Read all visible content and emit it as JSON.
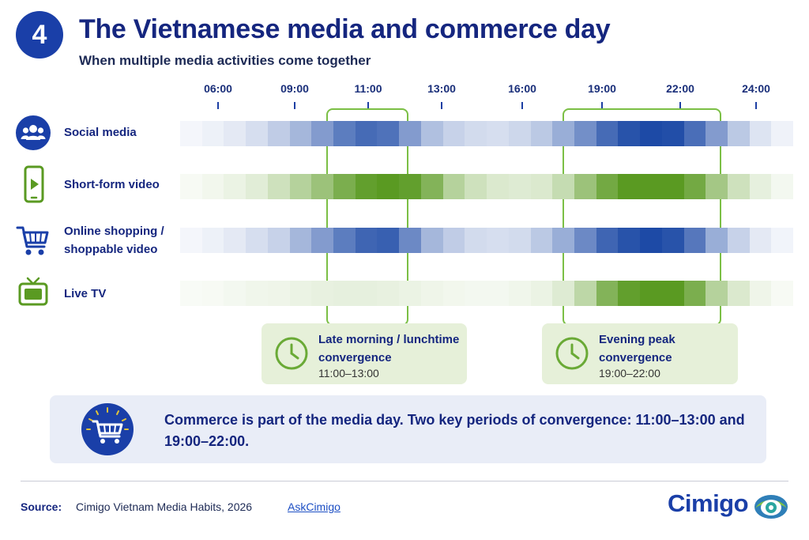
{
  "header": {
    "badge_number": "4",
    "title": "The Vietnamese media and commerce day",
    "subtitle": "When multiple media activities come together"
  },
  "chart_data": {
    "type": "heatmap",
    "x_ticks": [
      "06:00",
      "09:00",
      "11:00",
      "13:00",
      "16:00",
      "19:00",
      "22:00",
      "24:00"
    ],
    "rows": [
      {
        "label": "Social media",
        "icon": "people-icon",
        "color": "#1d4aa6",
        "intensity": [
          0.05,
          0.08,
          0.12,
          0.18,
          0.28,
          0.4,
          0.55,
          0.72,
          0.82,
          0.78,
          0.55,
          0.35,
          0.25,
          0.2,
          0.18,
          0.22,
          0.3,
          0.45,
          0.62,
          0.82,
          0.95,
          1.0,
          0.98,
          0.8,
          0.55,
          0.3,
          0.15,
          0.07
        ]
      },
      {
        "label": "Short-form video",
        "icon": "phone-play-icon",
        "color": "#5a9a22",
        "intensity": [
          0.05,
          0.08,
          0.12,
          0.18,
          0.3,
          0.45,
          0.6,
          0.8,
          0.95,
          1.0,
          0.95,
          0.75,
          0.45,
          0.3,
          0.22,
          0.2,
          0.22,
          0.35,
          0.6,
          0.85,
          1.0,
          1.0,
          1.0,
          0.85,
          0.55,
          0.3,
          0.15,
          0.07
        ]
      },
      {
        "label": "Online shopping / shoppable video",
        "icon": "shopping-cart-icon",
        "color": "#1d4aa6",
        "intensity": [
          0.05,
          0.08,
          0.12,
          0.18,
          0.25,
          0.4,
          0.55,
          0.72,
          0.85,
          0.88,
          0.65,
          0.4,
          0.28,
          0.2,
          0.18,
          0.2,
          0.3,
          0.45,
          0.65,
          0.85,
          0.95,
          1.0,
          0.95,
          0.75,
          0.45,
          0.25,
          0.12,
          0.06
        ]
      },
      {
        "label": "Live TV",
        "icon": "tv-icon",
        "color": "#5a9a22",
        "intensity": [
          0.04,
          0.05,
          0.07,
          0.09,
          0.1,
          0.12,
          0.14,
          0.15,
          0.15,
          0.14,
          0.12,
          0.1,
          0.08,
          0.07,
          0.07,
          0.09,
          0.12,
          0.2,
          0.4,
          0.75,
          0.95,
          1.0,
          1.0,
          0.8,
          0.45,
          0.22,
          0.1,
          0.05
        ]
      }
    ],
    "highlight_windows": [
      {
        "title": "Late morning / lunchtime convergence",
        "range": "11:00–13:00"
      },
      {
        "title": "Evening peak convergence",
        "range": "19:00–22:00"
      }
    ]
  },
  "summary": {
    "icon": "shopping-cart-icon",
    "text": "Commerce is part of the media day. Two key periods of convergence: 11:00–13:00 and 19:00–22:00."
  },
  "footer": {
    "source_label": "Source:",
    "source_text": "Cimigo Vietnam Media Habits, 2026",
    "link_text": "AskCimigo",
    "brand": "Cimigo"
  },
  "colors": {
    "navy": "#15267f",
    "blue": "#1d4aa6",
    "green": "#5a9a22",
    "callout_bg": "#e6f0d9",
    "summary_bg": "#e9edf7"
  }
}
